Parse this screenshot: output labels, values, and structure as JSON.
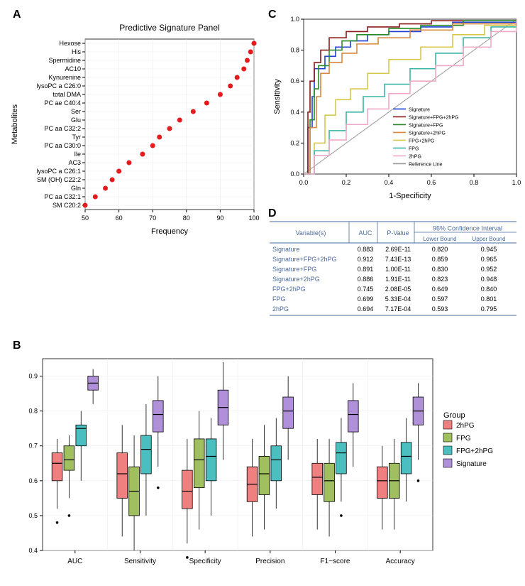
{
  "panelA": {
    "label": "A",
    "title": "Predictive Signature Panel",
    "title_fontsize": 12,
    "ylabel": "Metabolites",
    "xlabel": "Frequency",
    "label_fontsize": 11,
    "tick_fontsize": 9,
    "metabolites": [
      "Hexose",
      "His",
      "Spermidine",
      "AC10",
      "Kynurenine",
      "lysoPC a C26:0",
      "total DMA",
      "PC ae C40:4",
      "Ser",
      "Glu",
      "PC aa C32:2",
      "Tyr",
      "PC aa C30:0",
      "Ile",
      "AC3",
      "lysoPC a C26:1",
      "SM (OH) C22:2",
      "Gln",
      "PC aa C32:1",
      "SM C20:2"
    ],
    "frequencies": [
      100,
      99,
      98,
      97,
      95,
      93,
      90,
      86,
      82,
      78,
      75,
      72,
      70,
      67,
      63,
      60,
      58,
      56,
      53,
      50
    ],
    "point_color": "#e41a1c",
    "point_radius": 3.5,
    "xlim": [
      50,
      100
    ],
    "xticks": [
      50,
      60,
      70,
      80,
      90,
      100
    ],
    "background_color": "#ffffff",
    "grid_color": "#e8e8e8"
  },
  "panelB": {
    "label": "B",
    "ylabel": "",
    "label_fontsize": 11,
    "tick_fontsize": 9,
    "metrics": [
      "AUC",
      "Sensitivity",
      "Specificity",
      "Precision",
      "F1−score",
      "Accuracy"
    ],
    "groups": [
      "2hPG",
      "FPG",
      "FPG+2hPG",
      "Signature"
    ],
    "legend_title": "Group",
    "colors": {
      "2hPG": "#f08080",
      "FPG": "#a0c060",
      "FPG+2hPG": "#4bbec0",
      "Signature": "#b090d8"
    },
    "ylim": [
      0.4,
      0.95
    ],
    "yticks": [
      0.4,
      0.5,
      0.6,
      0.7,
      0.8,
      0.9
    ],
    "data": {
      "AUC": {
        "2hPG": {
          "min": 0.52,
          "q1": 0.6,
          "med": 0.65,
          "q3": 0.68,
          "max": 0.72
        },
        "FPG": {
          "min": 0.55,
          "q1": 0.63,
          "med": 0.66,
          "q3": 0.7,
          "max": 0.73
        },
        "FPG+2hPG": {
          "min": 0.6,
          "q1": 0.7,
          "med": 0.75,
          "q3": 0.76,
          "max": 0.8
        },
        "Signature": {
          "min": 0.82,
          "q1": 0.86,
          "med": 0.88,
          "q3": 0.9,
          "max": 0.92
        }
      },
      "Sensitivity": {
        "2hPG": {
          "min": 0.44,
          "q1": 0.55,
          "med": 0.62,
          "q3": 0.68,
          "max": 0.76
        },
        "FPG": {
          "min": 0.4,
          "q1": 0.5,
          "med": 0.57,
          "q3": 0.64,
          "max": 0.73
        },
        "FPG+2hPG": {
          "min": 0.5,
          "q1": 0.62,
          "med": 0.69,
          "q3": 0.73,
          "max": 0.82
        },
        "Signature": {
          "min": 0.64,
          "q1": 0.74,
          "med": 0.79,
          "q3": 0.83,
          "max": 0.9
        }
      },
      "Specificity": {
        "2hPG": {
          "min": 0.42,
          "q1": 0.52,
          "med": 0.57,
          "q3": 0.63,
          "max": 0.72
        },
        "FPG": {
          "min": 0.46,
          "q1": 0.58,
          "med": 0.66,
          "q3": 0.72,
          "max": 0.8
        },
        "FPG+2hPG": {
          "min": 0.5,
          "q1": 0.6,
          "med": 0.67,
          "q3": 0.72,
          "max": 0.78
        },
        "Signature": {
          "min": 0.66,
          "q1": 0.76,
          "med": 0.81,
          "q3": 0.86,
          "max": 0.94
        }
      },
      "Precision": {
        "2hPG": {
          "min": 0.44,
          "q1": 0.54,
          "med": 0.59,
          "q3": 0.64,
          "max": 0.72
        },
        "FPG": {
          "min": 0.46,
          "q1": 0.56,
          "med": 0.62,
          "q3": 0.67,
          "max": 0.76
        },
        "FPG+2hPG": {
          "min": 0.52,
          "q1": 0.6,
          "med": 0.66,
          "q3": 0.7,
          "max": 0.78
        },
        "Signature": {
          "min": 0.66,
          "q1": 0.75,
          "med": 0.8,
          "q3": 0.84,
          "max": 0.9
        }
      },
      "F1−score": {
        "2hPG": {
          "min": 0.46,
          "q1": 0.56,
          "med": 0.61,
          "q3": 0.65,
          "max": 0.72
        },
        "FPG": {
          "min": 0.44,
          "q1": 0.54,
          "med": 0.6,
          "q3": 0.65,
          "max": 0.72
        },
        "FPG+2hPG": {
          "min": 0.54,
          "q1": 0.62,
          "med": 0.68,
          "q3": 0.71,
          "max": 0.78
        },
        "Signature": {
          "min": 0.64,
          "q1": 0.74,
          "med": 0.79,
          "q3": 0.83,
          "max": 0.88
        }
      },
      "Accuracy": {
        "2hPG": {
          "min": 0.46,
          "q1": 0.55,
          "med": 0.6,
          "q3": 0.64,
          "max": 0.7
        },
        "FPG": {
          "min": 0.46,
          "q1": 0.55,
          "med": 0.6,
          "q3": 0.65,
          "max": 0.72
        },
        "FPG+2hPG": {
          "min": 0.54,
          "q1": 0.62,
          "med": 0.67,
          "q3": 0.71,
          "max": 0.78
        },
        "Signature": {
          "min": 0.66,
          "q1": 0.76,
          "med": 0.8,
          "q3": 0.84,
          "max": 0.88
        }
      }
    },
    "outliers": {
      "AUC": {
        "2hPG": [
          0.48
        ],
        "FPG": [
          0.5
        ]
      },
      "Sensitivity": {
        "Signature": [
          0.58
        ]
      },
      "Specificity": {
        "2hPG": [
          0.38
        ]
      },
      "F1−score": {
        "FPG+2hPG": [
          0.5
        ]
      },
      "Accuracy": {
        "Signature": [
          0.6
        ]
      }
    },
    "background_color": "#ffffff",
    "grid_color": "#e8e8e8"
  },
  "panelC": {
    "label": "C",
    "ylabel": "Sensitivity",
    "xlabel": "1-Specificity",
    "label_fontsize": 11,
    "tick_fontsize": 9,
    "xlim": [
      0,
      1
    ],
    "ylim": [
      0,
      1
    ],
    "xticks": [
      0.0,
      0.2,
      0.4,
      0.6,
      0.8,
      1.0
    ],
    "yticks": [
      0.0,
      0.2,
      0.4,
      0.6,
      0.8,
      1.0
    ],
    "legend_items": [
      "Signature",
      "Signature+FPG+2hPG",
      "Signature+FPG",
      "Signature+2hPG",
      "FPG+2hPG",
      "FPG",
      "2hPG",
      "Reference Line"
    ],
    "colors": {
      "Signature": "#1f3fd4",
      "Signature+FPG+2hPG": "#8b1a1a",
      "Signature+FPG": "#2a8b2a",
      "Signature+2hPG": "#d9883d",
      "FPG+2hPG": "#d4c94a",
      "FPG": "#3ab5a6",
      "2hPG": "#f0a8c8",
      "Reference Line": "#999999"
    },
    "curves": {
      "Signature": [
        [
          0,
          0
        ],
        [
          0.02,
          0.3
        ],
        [
          0.04,
          0.5
        ],
        [
          0.05,
          0.68
        ],
        [
          0.1,
          0.76
        ],
        [
          0.15,
          0.82
        ],
        [
          0.22,
          0.86
        ],
        [
          0.3,
          0.9
        ],
        [
          0.4,
          0.92
        ],
        [
          0.55,
          0.95
        ],
        [
          0.7,
          0.98
        ],
        [
          1,
          1
        ]
      ],
      "Signature+FPG+2hPG": [
        [
          0,
          0
        ],
        [
          0.02,
          0.4
        ],
        [
          0.03,
          0.6
        ],
        [
          0.05,
          0.72
        ],
        [
          0.08,
          0.8
        ],
        [
          0.12,
          0.88
        ],
        [
          0.2,
          0.92
        ],
        [
          0.3,
          0.95
        ],
        [
          0.45,
          0.97
        ],
        [
          0.6,
          0.99
        ],
        [
          1,
          1
        ]
      ],
      "Signature+FPG": [
        [
          0,
          0
        ],
        [
          0.03,
          0.35
        ],
        [
          0.05,
          0.55
        ],
        [
          0.07,
          0.7
        ],
        [
          0.12,
          0.8
        ],
        [
          0.18,
          0.86
        ],
        [
          0.25,
          0.9
        ],
        [
          0.4,
          0.94
        ],
        [
          0.55,
          0.96
        ],
        [
          0.75,
          0.99
        ],
        [
          1,
          1
        ]
      ],
      "Signature+2hPG": [
        [
          0,
          0
        ],
        [
          0.03,
          0.3
        ],
        [
          0.06,
          0.5
        ],
        [
          0.08,
          0.65
        ],
        [
          0.12,
          0.72
        ],
        [
          0.18,
          0.78
        ],
        [
          0.25,
          0.84
        ],
        [
          0.35,
          0.88
        ],
        [
          0.5,
          0.93
        ],
        [
          0.7,
          0.97
        ],
        [
          1,
          1
        ]
      ],
      "FPG+2hPG": [
        [
          0,
          0
        ],
        [
          0.05,
          0.2
        ],
        [
          0.1,
          0.38
        ],
        [
          0.15,
          0.48
        ],
        [
          0.22,
          0.55
        ],
        [
          0.3,
          0.65
        ],
        [
          0.4,
          0.74
        ],
        [
          0.55,
          0.82
        ],
        [
          0.7,
          0.9
        ],
        [
          0.85,
          0.96
        ],
        [
          1,
          1
        ]
      ],
      "FPG": [
        [
          0,
          0
        ],
        [
          0.05,
          0.15
        ],
        [
          0.12,
          0.28
        ],
        [
          0.2,
          0.4
        ],
        [
          0.28,
          0.5
        ],
        [
          0.38,
          0.58
        ],
        [
          0.5,
          0.68
        ],
        [
          0.62,
          0.78
        ],
        [
          0.75,
          0.88
        ],
        [
          0.88,
          0.95
        ],
        [
          1,
          1
        ]
      ],
      "2hPG": [
        [
          0,
          0
        ],
        [
          0.05,
          0.12
        ],
        [
          0.12,
          0.22
        ],
        [
          0.2,
          0.32
        ],
        [
          0.3,
          0.42
        ],
        [
          0.4,
          0.52
        ],
        [
          0.5,
          0.6
        ],
        [
          0.62,
          0.7
        ],
        [
          0.75,
          0.82
        ],
        [
          0.88,
          0.92
        ],
        [
          1,
          1
        ]
      ]
    },
    "legend_fontsize": 7,
    "background_color": "#ffffff"
  },
  "panelD": {
    "label": "D",
    "header_color": "#4a6a9a",
    "text_color": "#4a6a9a",
    "body_color": "#000000",
    "border_color": "#4a6a9a",
    "fontsize": 9,
    "columns": [
      "Variable(s)",
      "AUC",
      "P-Value",
      "Lower Bound",
      "Upper Bound"
    ],
    "ci_header": "95% Confidence Interval",
    "rows": [
      [
        "Signature",
        "0.883",
        "2.69E-11",
        "0.820",
        "0.945"
      ],
      [
        "Signature+FPG+2hPG",
        "0.912",
        "7.43E-13",
        "0.859",
        "0.965"
      ],
      [
        "Signature+FPG",
        "0.891",
        "1.00E-11",
        "0.830",
        "0.952"
      ],
      [
        "Signature+2hPG",
        "0.886",
        "1.91E-11",
        "0.823",
        "0.948"
      ],
      [
        "FPG+2hPG",
        "0.745",
        "2.08E-05",
        "0.649",
        "0.840"
      ],
      [
        "FPG",
        "0.699",
        "5.33E-04",
        "0.597",
        "0.801"
      ],
      [
        "2hPG",
        "0.694",
        "7.17E-04",
        "0.593",
        "0.795"
      ]
    ]
  }
}
